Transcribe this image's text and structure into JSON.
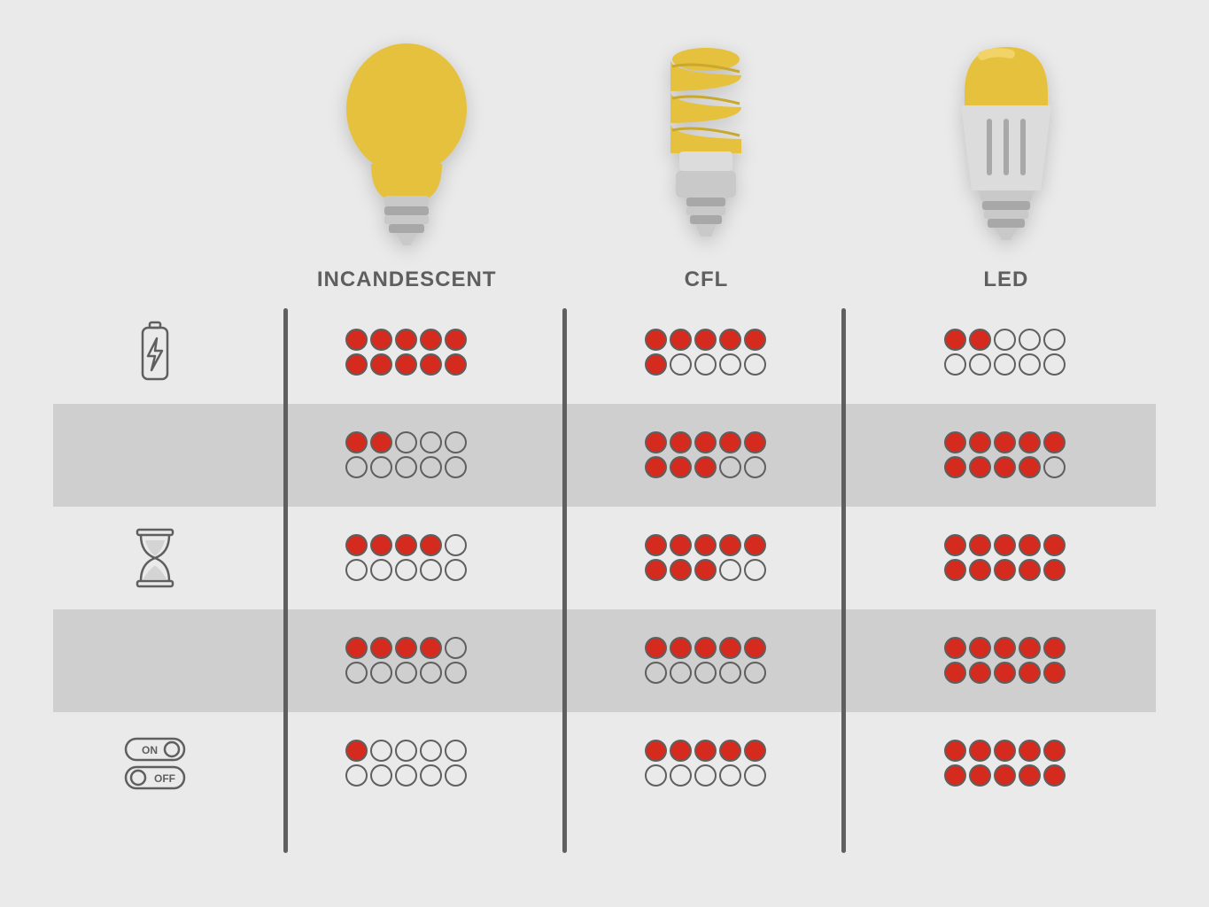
{
  "type": "infographic-comparison-table",
  "background_color": "#eaeaea",
  "alt_row_color": "#cfcfcf",
  "divider_color": "#5f5f5f",
  "dot_filled_color": "#d52b1e",
  "dot_border_color": "#5f5f5f",
  "label_color": "#5f5f5f",
  "label_fontsize": 24,
  "dot_size": 25,
  "dots_per_cell": 10,
  "bulb_colors": {
    "yellow": "#e5c13d",
    "yellow_light": "#f2d368",
    "gray": "#c9c9c9",
    "gray_dark": "#a8a8a8",
    "gray_light": "#dcdcdc"
  },
  "columns": [
    {
      "id": "incandescent",
      "label": "INCANDESCENT"
    },
    {
      "id": "cfl",
      "label": "CFL"
    },
    {
      "id": "led",
      "label": "LED"
    }
  ],
  "rows": [
    {
      "id": "energy",
      "icon": "battery-bolt-icon",
      "alt": false,
      "values": [
        10,
        6,
        2
      ]
    },
    {
      "id": "cost",
      "icon": "money-bag-icon",
      "alt": true,
      "values": [
        2,
        8,
        9
      ]
    },
    {
      "id": "lifespan",
      "icon": "hourglass-icon",
      "alt": false,
      "values": [
        4,
        8,
        10
      ]
    },
    {
      "id": "eco",
      "icon": "eco-globe-icon",
      "alt": true,
      "values": [
        4,
        5,
        10
      ]
    },
    {
      "id": "switching",
      "icon": "on-off-icon",
      "alt": false,
      "values": [
        1,
        5,
        10
      ]
    }
  ]
}
